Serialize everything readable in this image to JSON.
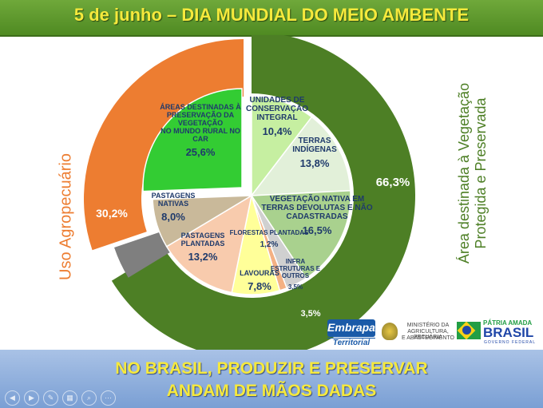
{
  "header": {
    "title": "5 de junho – DIA MUNDIAL DO MEIO AMBENTE"
  },
  "footer": {
    "line1": "NO BRASIL, PRODUZIR E PRESERVAR",
    "line2": "ANDAM DE MÃOS DADAS"
  },
  "side_labels": {
    "left": "Uso Agropecuário",
    "right_line1": "Área destinada à Vegetação",
    "right_line2": "Protegida e Preservada"
  },
  "logos": {
    "embrapa": "Embrapa",
    "territorial": "Territorial",
    "ministerio_1": "MINISTÉRIO DA",
    "ministerio_2": "AGRICULTURA, PECUÁRIA",
    "ministerio_3": "E ABASTECIMENTO",
    "patria": "PÁTRIA AMADA",
    "brasil": "BRASIL",
    "governo": "GOVERNO FEDERAL"
  },
  "colors": {
    "outer_preserved": "#4d7f25",
    "outer_agro": "#ed7d31",
    "outer_infra": "#7f7f7f"
  },
  "chart_data": {
    "type": "pie",
    "outer_ring": [
      {
        "label": "66,3%",
        "value": 66.3,
        "color": "#4d7f25"
      },
      {
        "label": "3,5%",
        "value": 3.5,
        "color": "#7f7f7f"
      },
      {
        "label": "30,2%",
        "value": 30.2,
        "color": "#ed7d31"
      }
    ],
    "inner_pie": [
      {
        "name": [
          "UNIDADES DE",
          "CONSERVAÇÃO",
          "INTEGRAL"
        ],
        "value_label": "10,4%",
        "value": 10.4,
        "color": "#c6efa1"
      },
      {
        "name": [
          "TERRAS",
          "INDÍGENAS"
        ],
        "value_label": "13,8%",
        "value": 13.8,
        "color": "#e2f0d9"
      },
      {
        "name": [
          "VEGETAÇÃO NATIVA EM",
          "TERRAS DEVOLUTAS E NÃO",
          "CADASTRADAS"
        ],
        "value_label": "16,5%",
        "value": 16.5,
        "color": "#a9d18e"
      },
      {
        "name": [
          "INFRA",
          "ESTRUTURAS E",
          "OUTROS"
        ],
        "value_label": "3,5%",
        "value": 3.5,
        "color": "#d0d0d0"
      },
      {
        "name": [
          "FLORESTAS PLANTADAS"
        ],
        "value_label": "1,2%",
        "value": 1.2,
        "color": "#f4b183"
      },
      {
        "name": [
          "LAVOURAS"
        ],
        "value_label": "7,8%",
        "value": 7.8,
        "color": "#ffff99"
      },
      {
        "name": [
          "PASTAGENS",
          "PLANTADAS"
        ],
        "value_label": "13,2%",
        "value": 13.2,
        "color": "#f8cbad"
      },
      {
        "name": [
          "PASTAGENS",
          "NATIVAS"
        ],
        "value_label": "8,0%",
        "value": 8.0,
        "color": "#c9b99a"
      },
      {
        "name": [
          "ÁREAS DESTINADAS À",
          "PRESERVAÇÃO DA",
          "VEGETAÇÃO",
          "NO MUNDO RURAL NO",
          "CAR"
        ],
        "value_label": "25,6%",
        "value": 25.6,
        "color": "#33cc33"
      }
    ]
  }
}
